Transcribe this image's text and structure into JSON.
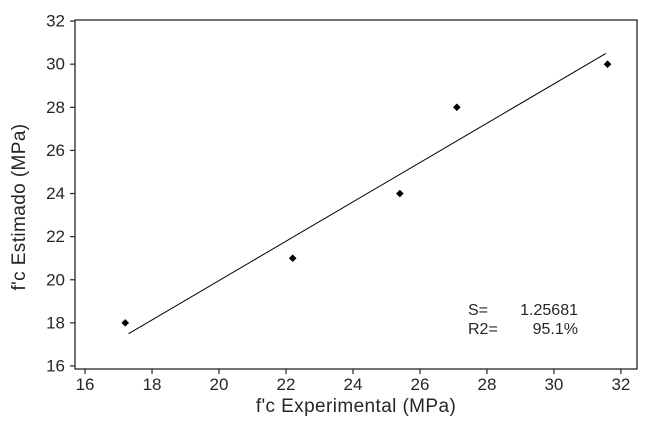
{
  "chart_data": {
    "type": "scatter",
    "title": "",
    "xlabel": "f'c Experimental (MPa)",
    "ylabel": "f'c Estimado (MPa)",
    "x": [
      17.2,
      22.2,
      25.4,
      27.1,
      31.6
    ],
    "y": [
      18,
      21,
      24,
      28,
      30
    ],
    "fit_line": {
      "x_start": 17.3,
      "y_start": 17.5,
      "x_end": 31.55,
      "y_end": 30.5
    },
    "xticks": [
      16,
      18,
      20,
      22,
      24,
      26,
      28,
      30,
      32
    ],
    "yticks": [
      16,
      18,
      20,
      22,
      24,
      26,
      28,
      30,
      32
    ],
    "xlim": [
      15.7,
      32.48
    ],
    "ylim": [
      15.86,
      32.05
    ],
    "grid": false,
    "legend": false,
    "annotations": [
      {
        "label": "S=",
        "value": "1.25681"
      },
      {
        "label": "R2=",
        "value": "95.1%"
      }
    ],
    "marker": {
      "shape": "diamond",
      "color": "#000000",
      "size": 7.6
    },
    "colors": {
      "line": "#000000",
      "axis": "#262626",
      "text": "#262626",
      "background": "#ffffff"
    }
  }
}
